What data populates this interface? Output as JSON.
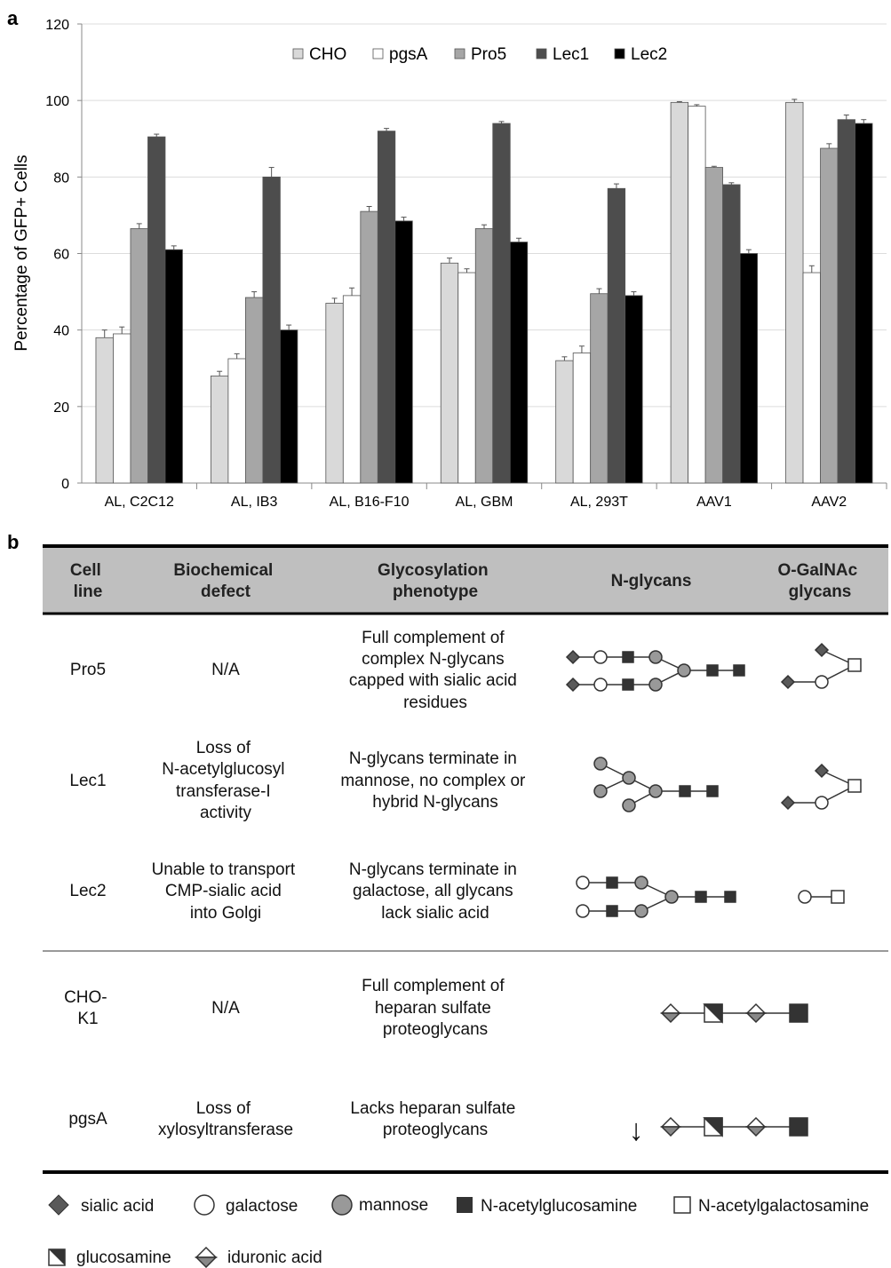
{
  "panel_a": {
    "letter": "a",
    "chart_data": {
      "type": "bar",
      "categories": [
        "AL, C2C12",
        "AL, IB3",
        "AL, B16-F10",
        "AL, GBM",
        "AL, 293T",
        "AAV1",
        "AAV2"
      ],
      "series": [
        {
          "name": "CHO",
          "color": "#d9d9d9",
          "values": [
            38,
            28,
            47,
            57.5,
            32,
            99.5,
            99.5
          ],
          "errors": [
            2,
            1.2,
            1.3,
            1.3,
            1,
            0.2,
            0.8
          ]
        },
        {
          "name": "pgsA",
          "color": "#ffffff",
          "values": [
            39,
            32.5,
            49,
            55,
            34,
            98.5,
            55
          ],
          "errors": [
            1.8,
            1.3,
            2,
            1,
            1.8,
            0.4,
            1.8
          ]
        },
        {
          "name": "Pro5",
          "color": "#a6a6a6",
          "values": [
            66.5,
            48.5,
            71,
            66.5,
            49.5,
            82.5,
            87.5
          ],
          "errors": [
            1.3,
            1.5,
            1.3,
            1,
            1.3,
            0.3,
            1.2
          ]
        },
        {
          "name": "Lec1",
          "color": "#4d4d4d",
          "values": [
            90.5,
            80,
            92,
            94,
            77,
            78,
            95
          ],
          "errors": [
            0.7,
            2.5,
            0.7,
            0.5,
            1.2,
            0.5,
            1.2
          ]
        },
        {
          "name": "Lec2",
          "color": "#000000",
          "values": [
            61,
            40,
            68.5,
            63,
            49,
            60,
            94
          ],
          "errors": [
            1,
            1.3,
            1,
            1,
            1,
            1,
            1
          ]
        }
      ],
      "ylabel": "Percentage of GFP+ Cells",
      "xlabel": "",
      "ylim": [
        0,
        120
      ],
      "yticks": [
        0,
        20,
        40,
        60,
        80,
        100,
        120
      ],
      "grid": true,
      "legend_position": "top"
    }
  },
  "panel_b": {
    "letter": "b",
    "headers": {
      "cell_line": [
        "Cell",
        "line"
      ],
      "defect": [
        "Biochemical",
        "defect"
      ],
      "phenotype": [
        "Glycosylation",
        "phenotype"
      ],
      "nglycans": "N-glycans",
      "oglycans": [
        "O-GalNAc",
        "glycans"
      ]
    },
    "rows": [
      {
        "cell": [
          "Pro5"
        ],
        "defect": [
          "N/A"
        ],
        "phenotype": [
          "Full complement of",
          "complex N-glycans",
          "capped with sialic acid",
          "residues"
        ]
      },
      {
        "cell": [
          "Lec1"
        ],
        "defect": [
          "Loss of",
          "N-acetylglucosyl",
          "transferase-I",
          "activity"
        ],
        "phenotype": [
          "N-glycans terminate in",
          "mannose, no complex or",
          "hybrid N-glycans"
        ]
      },
      {
        "cell": [
          "Lec2"
        ],
        "defect": [
          "Unable to transport",
          "CMP-sialic acid",
          "into Golgi"
        ],
        "phenotype": [
          "N-glycans terminate in",
          "galactose, all glycans",
          "lack sialic acid"
        ]
      },
      {
        "cell": [
          "CHO-",
          "K1"
        ],
        "defect": [
          "N/A"
        ],
        "phenotype": [
          "Full complement of",
          "heparan sulfate",
          "proteoglycans"
        ]
      },
      {
        "cell": [
          "pgsA"
        ],
        "defect": [
          "Loss of",
          "xylosyltransferase"
        ],
        "phenotype": [
          "Lacks heparan sulfate",
          "proteoglycans"
        ]
      }
    ],
    "key": [
      {
        "symbol": "diamond",
        "label": "sialic acid"
      },
      {
        "symbol": "circle-open",
        "label": "galactose"
      },
      {
        "symbol": "circle-gray",
        "label": "mannose"
      },
      {
        "symbol": "square-dark",
        "label": "N-acetylglucosamine"
      },
      {
        "symbol": "square-open",
        "label": "N-acetylgalactosamine"
      },
      {
        "symbol": "half-square",
        "label": "glucosamine"
      },
      {
        "symbol": "half-diamond",
        "label": "iduronic acid"
      }
    ],
    "arrow_glyph": "↓"
  }
}
